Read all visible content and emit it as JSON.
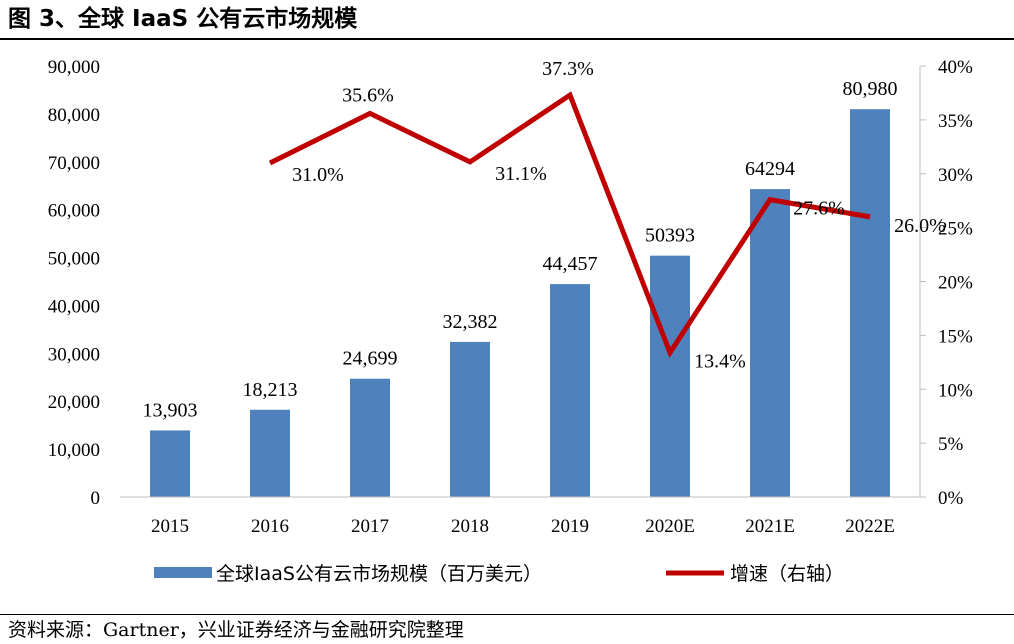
{
  "figure_title": "图 3、全球 IaaS 公有云市场规模",
  "source_note": "资料来源：Gartner，兴业证券经济与金融研究院整理",
  "colors": {
    "bar": "#4f81bd",
    "line": "#c00000",
    "axis": "#bfbfbf"
  },
  "chart_data": {
    "type": "bar",
    "categories": [
      "2015",
      "2016",
      "2017",
      "2018",
      "2019",
      "2020E",
      "2021E",
      "2022E"
    ],
    "series": [
      {
        "name": "全球IaaS公有云市场规模（百万美元）",
        "type": "bar",
        "axis": "left",
        "values": [
          13903,
          18213,
          24699,
          32382,
          44457,
          50393,
          64294,
          80980
        ],
        "labels": [
          "13,903",
          "18,213",
          "24,699",
          "32,382",
          "44,457",
          "50393",
          "64294",
          "80,980"
        ]
      },
      {
        "name": "增速（右轴）",
        "type": "line",
        "axis": "right",
        "values": [
          null,
          31.0,
          35.6,
          31.1,
          37.3,
          13.4,
          27.6,
          26.0
        ],
        "labels": [
          "",
          "31.0%",
          "35.6%",
          "31.1%",
          "37.3%",
          "13.4%",
          "27.6%",
          "26.0%"
        ]
      }
    ],
    "y_left": {
      "range": [
        0,
        90000
      ],
      "ticks": [
        0,
        10000,
        20000,
        30000,
        40000,
        50000,
        60000,
        70000,
        80000,
        90000
      ],
      "tick_labels": [
        "0",
        "10,000",
        "20,000",
        "30,000",
        "40,000",
        "50,000",
        "60,000",
        "70,000",
        "80,000",
        "90,000"
      ]
    },
    "y_right": {
      "range": [
        0,
        40
      ],
      "ticks": [
        0,
        5,
        10,
        15,
        20,
        25,
        30,
        35,
        40
      ],
      "tick_labels": [
        "0%",
        "5%",
        "10%",
        "15%",
        "20%",
        "25%",
        "30%",
        "35%",
        "40%"
      ]
    },
    "grid": false,
    "legend_position": "bottom"
  }
}
